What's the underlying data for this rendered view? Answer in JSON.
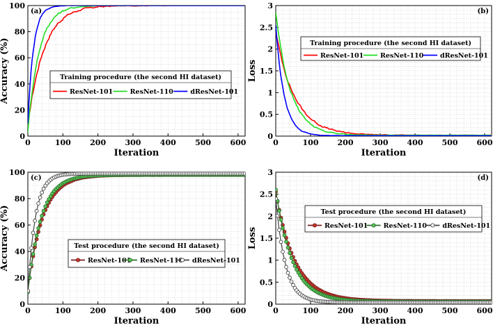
{
  "chart_data": [
    {
      "id": "a",
      "panel_label": "(a)",
      "type": "line",
      "xlabel": "Iteration",
      "ylabel": "Accuracy (%)",
      "xlim": [
        0,
        620
      ],
      "ylim": [
        0,
        100
      ],
      "xticks": [
        "0",
        "100",
        "200",
        "300",
        "400",
        "500",
        "600"
      ],
      "yticks": [
        "0",
        "20",
        "40",
        "60",
        "80",
        "100"
      ],
      "legend_title": "Training procedure (the second HI dataset)",
      "legend_layout": "horizontal",
      "legend_position": "center-bottom",
      "series": [
        {
          "name": "ResNet-101",
          "color": "#ff0000",
          "marker": "none",
          "start": 8,
          "end": 100,
          "tau": 45,
          "noise": 4
        },
        {
          "name": "ResNet-110",
          "color": "#22dd22",
          "marker": "none",
          "start": 4,
          "end": 100,
          "tau": 32,
          "noise": 4
        },
        {
          "name": "dResNet-101",
          "color": "#0000ff",
          "marker": "none",
          "start": 10,
          "end": 100,
          "tau": 16,
          "noise": 2.5
        }
      ]
    },
    {
      "id": "b",
      "panel_label": "(b)",
      "type": "line",
      "xlabel": "Iteration",
      "ylabel": "Loss",
      "xlim": [
        0,
        620
      ],
      "ylim": [
        0,
        3
      ],
      "xticks": [
        "0",
        "100",
        "200",
        "300",
        "400",
        "500",
        "600"
      ],
      "yticks": [
        "0",
        "0.5",
        "1",
        "1.5",
        "2",
        "2.5",
        "3"
      ],
      "legend_title": "Training procedure (the second HI dataset)",
      "legend_layout": "horizontal",
      "legend_position": "top",
      "series": [
        {
          "name": "ResNet-101",
          "color": "#ff0000",
          "marker": "none",
          "start": 2.4,
          "end": 0.02,
          "tau": 55,
          "noise": 0.08
        },
        {
          "name": "ResNet-110",
          "color": "#22dd22",
          "marker": "none",
          "start": 2.85,
          "end": 0.02,
          "tau": 42,
          "noise": 0.08
        },
        {
          "name": "dResNet-101",
          "color": "#0000ff",
          "marker": "none",
          "start": 2.55,
          "end": 0.01,
          "tau": 24,
          "noise": 0.05
        }
      ]
    },
    {
      "id": "c",
      "panel_label": "(c)",
      "type": "line",
      "xlabel": "Iteration",
      "ylabel": "Accuracy (%)",
      "xlim": [
        0,
        620
      ],
      "ylim": [
        0,
        100
      ],
      "xticks": [
        "0",
        "100",
        "200",
        "300",
        "400",
        "500",
        "600"
      ],
      "yticks": [
        "0",
        "20",
        "40",
        "60",
        "80",
        "100"
      ],
      "legend_title": "Test procedure (the second HI dataset)",
      "legend_layout": "horizontal",
      "legend_position": "center-bottom",
      "series": [
        {
          "name": "ResNet-101",
          "color": "#7a1a1a",
          "marker": "filled",
          "marker_fill": "#c0392b",
          "start": 10,
          "end": 98,
          "tau": 42,
          "noise": 0.5
        },
        {
          "name": "ResNet-110",
          "color": "#2e6b2e",
          "marker": "filled",
          "marker_fill": "#55c455",
          "start": 9,
          "end": 98,
          "tau": 38,
          "noise": 0.5
        },
        {
          "name": "dResNet-101",
          "color": "#444444",
          "marker": "hollow",
          "marker_fill": "#ffffff",
          "start": 10,
          "end": 99,
          "tau": 22,
          "noise": 0.3
        }
      ]
    },
    {
      "id": "d",
      "panel_label": "(d)",
      "type": "line",
      "xlabel": "Iteration",
      "ylabel": "Loss",
      "xlim": [
        0,
        620
      ],
      "ylim": [
        0,
        3
      ],
      "xticks": [
        "0",
        "100",
        "200",
        "300",
        "400",
        "500",
        "600"
      ],
      "yticks": [
        "0",
        "0.5",
        "1",
        "1.5",
        "2",
        "2.5",
        "3"
      ],
      "legend_title": "Test procedure (the second HI dataset)",
      "legend_layout": "horizontal",
      "legend_position": "top-right",
      "series": [
        {
          "name": "ResNet-101",
          "color": "#7a1a1a",
          "marker": "filled",
          "marker_fill": "#c0392b",
          "start": 2.55,
          "end": 0.07,
          "tau": 55,
          "noise": 0.01
        },
        {
          "name": "ResNet-110",
          "color": "#2e6b2e",
          "marker": "filled",
          "marker_fill": "#55c455",
          "start": 2.6,
          "end": 0.06,
          "tau": 48,
          "noise": 0.01
        },
        {
          "name": "dResNet-101",
          "color": "#444444",
          "marker": "hollow",
          "marker_fill": "#ffffff",
          "start": 2.4,
          "end": 0.04,
          "tau": 28,
          "noise": 0.01
        }
      ]
    }
  ]
}
